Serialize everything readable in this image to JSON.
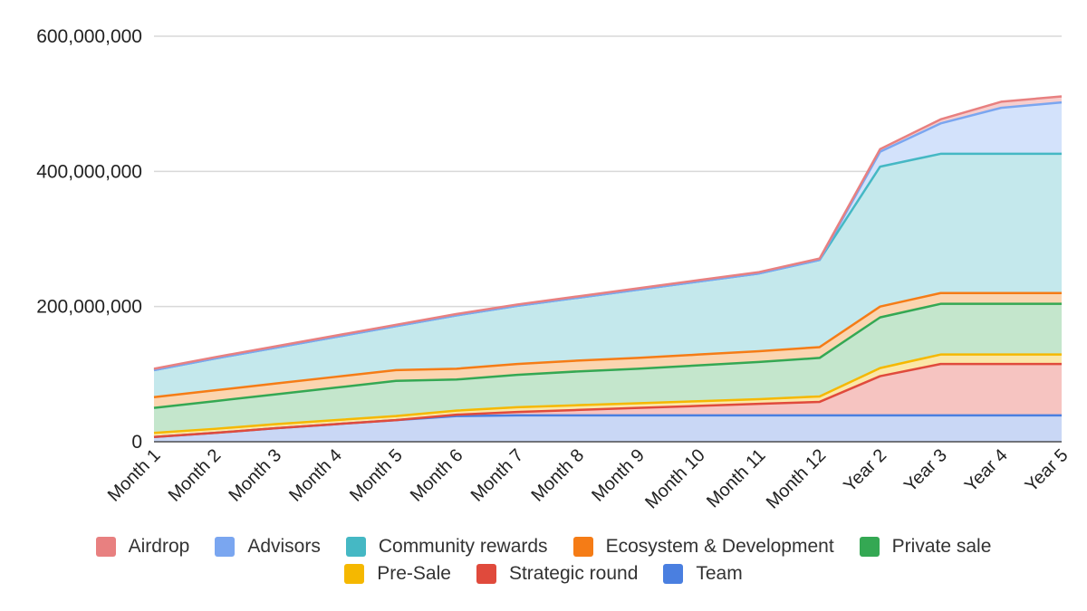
{
  "chart_data": {
    "type": "area",
    "stacked": true,
    "categories": [
      "Month 1",
      "Month 2",
      "Month 3",
      "Month 4",
      "Month 5",
      "Month 6",
      "Month 7",
      "Month 8",
      "Month 9",
      "Month 10",
      "Month 11",
      "Month 12",
      "Year 2",
      "Year 3",
      "Year 4",
      "Year 5"
    ],
    "ylim": [
      0,
      600000000
    ],
    "yticks": [
      0,
      200000000,
      400000000,
      600000000
    ],
    "ytick_labels": [
      "0",
      "200,000,000",
      "400,000,000",
      "600,000,000"
    ],
    "grid": true,
    "legend_position": "bottom",
    "series": [
      {
        "name": "Team",
        "color": "#4a7fe0",
        "fill": "#c9d7f5",
        "values": [
          7000000,
          13000000,
          20000000,
          26000000,
          32000000,
          38000000,
          39000000,
          39000000,
          39000000,
          39000000,
          39000000,
          39000000,
          39000000,
          39000000,
          39000000,
          39000000
        ]
      },
      {
        "name": "Strategic round",
        "color": "#e04a3c",
        "fill": "#f6c4c1",
        "values": [
          0,
          0,
          0,
          0,
          0,
          2000000,
          5000000,
          8000000,
          11000000,
          14000000,
          17000000,
          20000000,
          58000000,
          76000000,
          76000000,
          76000000
        ]
      },
      {
        "name": "Pre-Sale",
        "color": "#f5b800",
        "fill": "#fbe7a8",
        "values": [
          6000000,
          6000000,
          6000000,
          6000000,
          6000000,
          6000000,
          7000000,
          7000000,
          7000000,
          7000000,
          7000000,
          8000000,
          12000000,
          14000000,
          14000000,
          14000000
        ]
      },
      {
        "name": "Private sale",
        "color": "#34a853",
        "fill": "#c4e6cc",
        "values": [
          37000000,
          41000000,
          44000000,
          48000000,
          52000000,
          46000000,
          48000000,
          50000000,
          51000000,
          53000000,
          55000000,
          57000000,
          75000000,
          75000000,
          75000000,
          75000000
        ]
      },
      {
        "name": "Ecosystem & Development",
        "color": "#f57c16",
        "fill": "#fbd5b0",
        "values": [
          16000000,
          16000000,
          16000000,
          16000000,
          16000000,
          16000000,
          16000000,
          16000000,
          16000000,
          16000000,
          16000000,
          16000000,
          16000000,
          16000000,
          16000000,
          16000000
        ]
      },
      {
        "name": "Community rewards",
        "color": "#45b8c4",
        "fill": "#c4e8ec",
        "values": [
          40000000,
          47000000,
          53000000,
          59000000,
          65000000,
          79000000,
          86000000,
          93000000,
          101000000,
          108000000,
          115000000,
          129000000,
          207000000,
          206000000,
          206000000,
          206000000
        ]
      },
      {
        "name": "Advisors",
        "color": "#7aa6f0",
        "fill": "#d3e2fb",
        "values": [
          0,
          0,
          0,
          0,
          0,
          0,
          0,
          0,
          0,
          0,
          0,
          0,
          22000000,
          45000000,
          68000000,
          76000000
        ]
      },
      {
        "name": "Airdrop",
        "color": "#e88080",
        "fill": "#f6cece",
        "values": [
          2000000,
          2000000,
          2000000,
          2000000,
          2000000,
          2000000,
          2000000,
          2000000,
          2000000,
          2000000,
          2000000,
          2000000,
          4000000,
          6000000,
          9000000,
          9000000
        ]
      }
    ],
    "legend_order": [
      "Airdrop",
      "Advisors",
      "Community rewards",
      "Ecosystem & Development",
      "Private sale",
      "Pre-Sale",
      "Strategic round",
      "Team"
    ]
  }
}
